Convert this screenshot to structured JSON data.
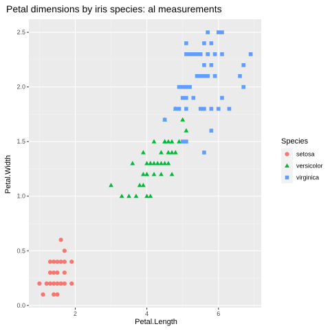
{
  "chart_data": {
    "type": "scatter",
    "title": "Petal dimensions by iris species: al measurements",
    "xlabel": "Petal.Length",
    "ylabel": "Petal.Width",
    "xlim": [
      0.705,
      7.195
    ],
    "ylim": [
      -0.02,
      2.62
    ],
    "xticks": [
      2,
      4,
      6
    ],
    "yticks": [
      0.0,
      0.5,
      1.0,
      1.5,
      2.0,
      2.5
    ],
    "xtick_labels": [
      "2",
      "4",
      "6"
    ],
    "ytick_labels": [
      "0.0",
      "0.5",
      "1.0",
      "1.5",
      "2.0",
      "2.5"
    ],
    "grid": true,
    "background": "#EBEBEB",
    "legend": {
      "title": "Species",
      "position": "right"
    },
    "series": [
      {
        "name": "setosa",
        "marker": "circle",
        "color": "#F8766D",
        "points": [
          [
            1.0,
            0.2
          ],
          [
            1.1,
            0.1
          ],
          [
            1.2,
            0.2
          ],
          [
            1.3,
            0.2
          ],
          [
            1.3,
            0.3
          ],
          [
            1.3,
            0.4
          ],
          [
            1.4,
            0.1
          ],
          [
            1.4,
            0.2
          ],
          [
            1.4,
            0.3
          ],
          [
            1.5,
            0.1
          ],
          [
            1.5,
            0.2
          ],
          [
            1.5,
            0.3
          ],
          [
            1.5,
            0.4
          ],
          [
            1.6,
            0.2
          ],
          [
            1.6,
            0.4
          ],
          [
            1.6,
            0.6
          ],
          [
            1.7,
            0.2
          ],
          [
            1.7,
            0.3
          ],
          [
            1.7,
            0.4
          ],
          [
            1.7,
            0.5
          ],
          [
            1.9,
            0.2
          ],
          [
            1.9,
            0.4
          ],
          [
            1.4,
            0.4
          ],
          [
            1.6,
            0.2
          ]
        ]
      },
      {
        "name": "versicolor",
        "marker": "triangle",
        "color": "#00BA38",
        "points": [
          [
            3.0,
            1.1
          ],
          [
            3.3,
            1.0
          ],
          [
            3.5,
            1.0
          ],
          [
            3.6,
            1.3
          ],
          [
            3.7,
            1.0
          ],
          [
            3.8,
            1.1
          ],
          [
            3.9,
            1.1
          ],
          [
            3.9,
            1.2
          ],
          [
            3.9,
            1.4
          ],
          [
            4.0,
            1.0
          ],
          [
            4.0,
            1.2
          ],
          [
            4.0,
            1.3
          ],
          [
            4.1,
            1.0
          ],
          [
            4.1,
            1.3
          ],
          [
            4.2,
            1.2
          ],
          [
            4.2,
            1.3
          ],
          [
            4.2,
            1.5
          ],
          [
            4.3,
            1.3
          ],
          [
            4.4,
            1.2
          ],
          [
            4.4,
            1.3
          ],
          [
            4.4,
            1.4
          ],
          [
            4.5,
            1.3
          ],
          [
            4.5,
            1.5
          ],
          [
            4.5,
            1.7
          ],
          [
            4.6,
            1.3
          ],
          [
            4.6,
            1.4
          ],
          [
            4.6,
            1.5
          ],
          [
            4.7,
            1.2
          ],
          [
            4.7,
            1.4
          ],
          [
            4.7,
            1.5
          ],
          [
            4.8,
            1.4
          ],
          [
            4.8,
            1.8
          ],
          [
            4.9,
            1.5
          ],
          [
            5.0,
            1.7
          ],
          [
            5.1,
            1.6
          ],
          [
            4.0,
            1.2
          ],
          [
            4.5,
            1.5
          ],
          [
            4.1,
            1.3
          ]
        ]
      },
      {
        "name": "virginica",
        "marker": "square",
        "color": "#619CFF",
        "points": [
          [
            4.5,
            1.7
          ],
          [
            4.8,
            1.8
          ],
          [
            4.9,
            1.8
          ],
          [
            4.9,
            2.0
          ],
          [
            5.0,
            1.5
          ],
          [
            5.0,
            1.9
          ],
          [
            5.0,
            2.0
          ],
          [
            5.1,
            1.5
          ],
          [
            5.1,
            1.8
          ],
          [
            5.1,
            1.9
          ],
          [
            5.1,
            2.0
          ],
          [
            5.1,
            2.3
          ],
          [
            5.1,
            2.4
          ],
          [
            5.2,
            2.0
          ],
          [
            5.2,
            2.3
          ],
          [
            5.3,
            1.9
          ],
          [
            5.3,
            2.3
          ],
          [
            5.4,
            2.1
          ],
          [
            5.4,
            2.3
          ],
          [
            5.5,
            1.8
          ],
          [
            5.5,
            2.1
          ],
          [
            5.5,
            2.3
          ],
          [
            5.6,
            1.4
          ],
          [
            5.6,
            1.8
          ],
          [
            5.6,
            2.1
          ],
          [
            5.6,
            2.2
          ],
          [
            5.6,
            2.4
          ],
          [
            5.7,
            2.1
          ],
          [
            5.7,
            2.3
          ],
          [
            5.7,
            2.5
          ],
          [
            5.8,
            1.6
          ],
          [
            5.8,
            1.8
          ],
          [
            5.8,
            2.2
          ],
          [
            5.8,
            2.4
          ],
          [
            5.9,
            2.1
          ],
          [
            5.9,
            2.3
          ],
          [
            6.0,
            1.8
          ],
          [
            6.0,
            2.5
          ],
          [
            6.1,
            1.9
          ],
          [
            6.1,
            2.3
          ],
          [
            6.1,
            2.5
          ],
          [
            6.3,
            1.8
          ],
          [
            6.6,
            2.1
          ],
          [
            6.7,
            2.0
          ],
          [
            6.7,
            2.2
          ],
          [
            6.9,
            2.3
          ]
        ]
      }
    ]
  }
}
